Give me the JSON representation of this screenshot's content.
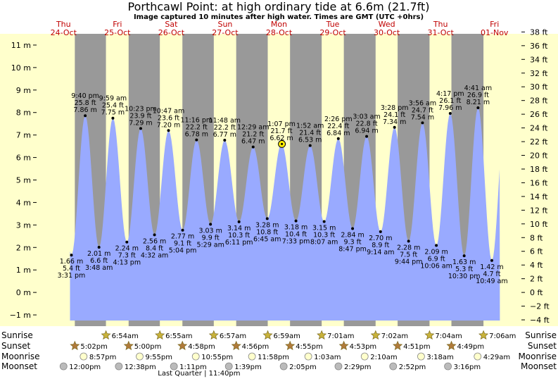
{
  "header": {
    "title": "Porthcawl Point: at high  ordinary tide at 6.6m (21.7ft)",
    "subtitle": "Image captured 10 minutes after high water. Times are GMT (UTC +0hrs)"
  },
  "colors": {
    "day": "#ffffcc",
    "night": "#999999",
    "tide": "#99aaff",
    "star_sun": "#c8b23a",
    "star_sunset": "#b07a3a"
  },
  "days": [
    {
      "dow": "Thu",
      "date": "24-Oct"
    },
    {
      "dow": "Fri",
      "date": "25-Oct"
    },
    {
      "dow": "Sat",
      "date": "26-Oct"
    },
    {
      "dow": "Sun",
      "date": "27-Oct"
    },
    {
      "dow": "Mon",
      "date": "28-Oct"
    },
    {
      "dow": "Tue",
      "date": "29-Oct"
    },
    {
      "dow": "Wed",
      "date": "30-Oct"
    },
    {
      "dow": "Thu",
      "date": "31-Oct"
    },
    {
      "dow": "Fri",
      "date": "01-Nov"
    }
  ],
  "chart_data": {
    "type": "area",
    "title": "Porthcawl Point: at high  ordinary tide at 6.6m (21.7ft)",
    "time_axis": [
      "24-Oct 00:00",
      "01-Nov 24:00"
    ],
    "ylim_m": [
      -1.5,
      11.5
    ],
    "ylabel_left_ticks": [
      "−1 m",
      "0 m",
      "1 m",
      "2 m",
      "3 m",
      "4 m",
      "5 m",
      "6 m",
      "7 m",
      "8 m",
      "9 m",
      "10 m",
      "11 m"
    ],
    "ylabel_right_ticks": [
      "−4 ft",
      "−2 ft",
      "0 ft",
      "2 ft",
      "4 ft",
      "6 ft",
      "8 ft",
      "10 ft",
      "12 ft",
      "14 ft",
      "16 ft",
      "18 ft",
      "20 ft",
      "22 ft",
      "24 ft",
      "26 ft",
      "28 ft",
      "30 ft",
      "32 ft",
      "34 ft",
      "36 ft",
      "38 ft"
    ],
    "current_point": {
      "time": "28-Oct 13:17",
      "height_m": 6.6
    },
    "extremes": [
      {
        "day": 0,
        "time": "15:31",
        "type": "low",
        "m": 1.66,
        "time_label": "3:31 pm",
        "m_label": "1.66 m",
        "ft_label": "5.4 ft"
      },
      {
        "day": 0,
        "time": "21:40",
        "type": "high",
        "m": 7.86,
        "time_label": "9:40 pm",
        "m_label": "7.86 m",
        "ft_label": "25.8 ft"
      },
      {
        "day": 1,
        "time": "03:48",
        "type": "low",
        "m": 2.01,
        "time_label": "3:48 am",
        "m_label": "2.01 m",
        "ft_label": "6.6 ft"
      },
      {
        "day": 1,
        "time": "09:59",
        "type": "high",
        "m": 7.75,
        "time_label": "9:59 am",
        "m_label": "7.75 m",
        "ft_label": "25.4 ft"
      },
      {
        "day": 1,
        "time": "16:13",
        "type": "low",
        "m": 2.24,
        "time_label": "4:13 pm",
        "m_label": "2.24 m",
        "ft_label": "7.3 ft"
      },
      {
        "day": 1,
        "time": "22:23",
        "type": "high",
        "m": 7.29,
        "time_label": "10:23 pm",
        "m_label": "7.29 m",
        "ft_label": "23.9 ft"
      },
      {
        "day": 2,
        "time": "04:32",
        "type": "low",
        "m": 2.56,
        "time_label": "4:32 am",
        "m_label": "2.56 m",
        "ft_label": "8.4 ft"
      },
      {
        "day": 2,
        "time": "10:47",
        "type": "high",
        "m": 7.2,
        "time_label": "10:47 am",
        "m_label": "7.20 m",
        "ft_label": "23.6 ft"
      },
      {
        "day": 2,
        "time": "17:04",
        "type": "low",
        "m": 2.77,
        "time_label": "5:04 pm",
        "m_label": "2.77 m",
        "ft_label": "9.1 ft"
      },
      {
        "day": 2,
        "time": "23:16",
        "type": "high",
        "m": 6.78,
        "time_label": "11:16 pm",
        "m_label": "6.78 m",
        "ft_label": "22.2 ft"
      },
      {
        "day": 3,
        "time": "05:29",
        "type": "low",
        "m": 3.03,
        "time_label": "5:29 am",
        "m_label": "3.03 m",
        "ft_label": "9.9 ft"
      },
      {
        "day": 3,
        "time": "11:48",
        "type": "high",
        "m": 6.77,
        "time_label": "11:48 am",
        "m_label": "6.77 m",
        "ft_label": "22.2 ft"
      },
      {
        "day": 3,
        "time": "18:11",
        "type": "low",
        "m": 3.14,
        "time_label": "6:11 pm",
        "m_label": "3.14 m",
        "ft_label": "10.3 ft"
      },
      {
        "day": 4,
        "time": "00:29",
        "type": "high",
        "m": 6.47,
        "time_label": "12:29 am",
        "m_label": "6.47 m",
        "ft_label": "21.2 ft"
      },
      {
        "day": 4,
        "time": "06:45",
        "type": "low",
        "m": 3.28,
        "time_label": "6:45 am",
        "m_label": "3.28 m",
        "ft_label": "10.8 ft"
      },
      {
        "day": 4,
        "time": "13:07",
        "type": "high",
        "m": 6.62,
        "time_label": "1:07 pm",
        "m_label": "6.62 m",
        "ft_label": "21.7 ft"
      },
      {
        "day": 4,
        "time": "19:33",
        "type": "low",
        "m": 3.18,
        "time_label": "7:33 pm",
        "m_label": "3.18 m",
        "ft_label": "10.4 ft"
      },
      {
        "day": 5,
        "time": "01:52",
        "type": "high",
        "m": 6.53,
        "time_label": "1:52 am",
        "m_label": "6.53 m",
        "ft_label": "21.4 ft"
      },
      {
        "day": 5,
        "time": "08:07",
        "type": "low",
        "m": 3.15,
        "time_label": "8:07 am",
        "m_label": "3.15 m",
        "ft_label": "10.3 ft"
      },
      {
        "day": 5,
        "time": "14:26",
        "type": "high",
        "m": 6.84,
        "time_label": "2:26 pm",
        "m_label": "6.84 m",
        "ft_label": "22.4 ft"
      },
      {
        "day": 5,
        "time": "20:47",
        "type": "low",
        "m": 2.84,
        "time_label": "8:47 pm",
        "m_label": "2.84 m",
        "ft_label": "9.3 ft"
      },
      {
        "day": 6,
        "time": "03:03",
        "type": "high",
        "m": 6.94,
        "time_label": "3:03 am",
        "m_label": "6.94 m",
        "ft_label": "22.8 ft"
      },
      {
        "day": 6,
        "time": "09:14",
        "type": "low",
        "m": 2.7,
        "time_label": "9:14 am",
        "m_label": "2.70 m",
        "ft_label": "8.9 ft"
      },
      {
        "day": 6,
        "time": "15:28",
        "type": "high",
        "m": 7.34,
        "time_label": "3:28 pm",
        "m_label": "7.34 m",
        "ft_label": "24.1 ft"
      },
      {
        "day": 6,
        "time": "21:44",
        "type": "low",
        "m": 2.28,
        "time_label": "9:44 pm",
        "m_label": "2.28 m",
        "ft_label": "7.5 ft"
      },
      {
        "day": 7,
        "time": "03:56",
        "type": "high",
        "m": 7.54,
        "time_label": "3:56 am",
        "m_label": "7.54 m",
        "ft_label": "24.7 ft"
      },
      {
        "day": 7,
        "time": "10:06",
        "type": "low",
        "m": 2.09,
        "time_label": "10:06 am",
        "m_label": "2.09 m",
        "ft_label": "6.9 ft"
      },
      {
        "day": 7,
        "time": "16:17",
        "type": "high",
        "m": 7.96,
        "time_label": "4:17 pm",
        "m_label": "7.96 m",
        "ft_label": "26.1 ft"
      },
      {
        "day": 7,
        "time": "22:30",
        "type": "low",
        "m": 1.63,
        "time_label": "10:30 pm",
        "m_label": "1.63 m",
        "ft_label": "5.3 ft"
      },
      {
        "day": 8,
        "time": "04:41",
        "type": "high",
        "m": 8.21,
        "time_label": "4:41 am",
        "m_label": "8.21 m",
        "ft_label": "26.9 ft"
      },
      {
        "day": 8,
        "time": "10:49",
        "type": "low",
        "m": 1.42,
        "time_label": "10:49 am",
        "m_label": "1.42 m",
        "ft_label": "4.7 ft"
      }
    ]
  },
  "events": {
    "row_labels": {
      "sunrise": "Sunrise",
      "sunset": "Sunset",
      "moonrise": "Moonrise",
      "moonset": "Moonset"
    },
    "sunrise": [
      {
        "day": 1,
        "time": "06:54",
        "label": "6:54am"
      },
      {
        "day": 2,
        "time": "06:55",
        "label": "6:55am"
      },
      {
        "day": 3,
        "time": "06:57",
        "label": "6:57am"
      },
      {
        "day": 4,
        "time": "06:59",
        "label": "6:59am"
      },
      {
        "day": 5,
        "time": "07:01",
        "label": "7:01am"
      },
      {
        "day": 6,
        "time": "07:02",
        "label": "7:02am"
      },
      {
        "day": 7,
        "time": "07:04",
        "label": "7:04am"
      },
      {
        "day": 8,
        "time": "07:06",
        "label": "7:06am"
      }
    ],
    "sunset": [
      {
        "day": 0,
        "time": "17:02",
        "label": "5:02pm"
      },
      {
        "day": 1,
        "time": "17:00",
        "label": "5:00pm"
      },
      {
        "day": 2,
        "time": "16:58",
        "label": "4:58pm"
      },
      {
        "day": 3,
        "time": "16:56",
        "label": "4:56pm"
      },
      {
        "day": 4,
        "time": "16:55",
        "label": "4:55pm"
      },
      {
        "day": 5,
        "time": "16:53",
        "label": "4:53pm"
      },
      {
        "day": 6,
        "time": "16:51",
        "label": "4:51pm"
      },
      {
        "day": 7,
        "time": "16:49",
        "label": "4:49pm"
      }
    ],
    "moonrise": [
      {
        "day": 0,
        "time": "20:57",
        "label": "8:57pm"
      },
      {
        "day": 1,
        "time": "21:55",
        "label": "9:55pm"
      },
      {
        "day": 2,
        "time": "22:55",
        "label": "10:55pm"
      },
      {
        "day": 3,
        "time": "23:58",
        "label": "11:58pm"
      },
      {
        "day": 5,
        "time": "01:03",
        "label": "1:03am"
      },
      {
        "day": 6,
        "time": "02:10",
        "label": "2:10am"
      },
      {
        "day": 7,
        "time": "03:18",
        "label": "3:18am"
      },
      {
        "day": 8,
        "time": "04:29",
        "label": "4:29am"
      }
    ],
    "moonset": [
      {
        "day": 0,
        "time": "12:00",
        "label": "12:00pm"
      },
      {
        "day": 1,
        "time": "12:38",
        "label": "12:38pm"
      },
      {
        "day": 2,
        "time": "13:11",
        "label": "1:11pm"
      },
      {
        "day": 3,
        "time": "13:39",
        "label": "1:39pm"
      },
      {
        "day": 4,
        "time": "14:05",
        "label": "2:05pm"
      },
      {
        "day": 5,
        "time": "14:29",
        "label": "2:29pm"
      },
      {
        "day": 6,
        "time": "14:52",
        "label": "2:52pm"
      },
      {
        "day": 7,
        "time": "15:16",
        "label": "3:16pm"
      }
    ],
    "moon_phase": {
      "label": "Last Quarter | 11:40pm",
      "day": 2,
      "time": "23:40"
    }
  }
}
